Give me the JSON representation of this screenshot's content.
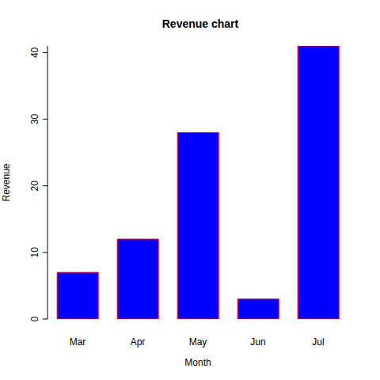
{
  "chart_data": {
    "type": "bar",
    "title": "Revenue chart",
    "xlabel": "Month",
    "ylabel": "Revenue",
    "categories": [
      "Mar",
      "Apr",
      "May",
      "Jun",
      "Jul"
    ],
    "values": [
      7,
      12,
      28,
      3,
      41
    ],
    "color": "#0000ff",
    "ylim": [
      0,
      41
    ],
    "yticks": [
      0,
      10,
      20,
      30,
      40
    ],
    "grid": false
  }
}
